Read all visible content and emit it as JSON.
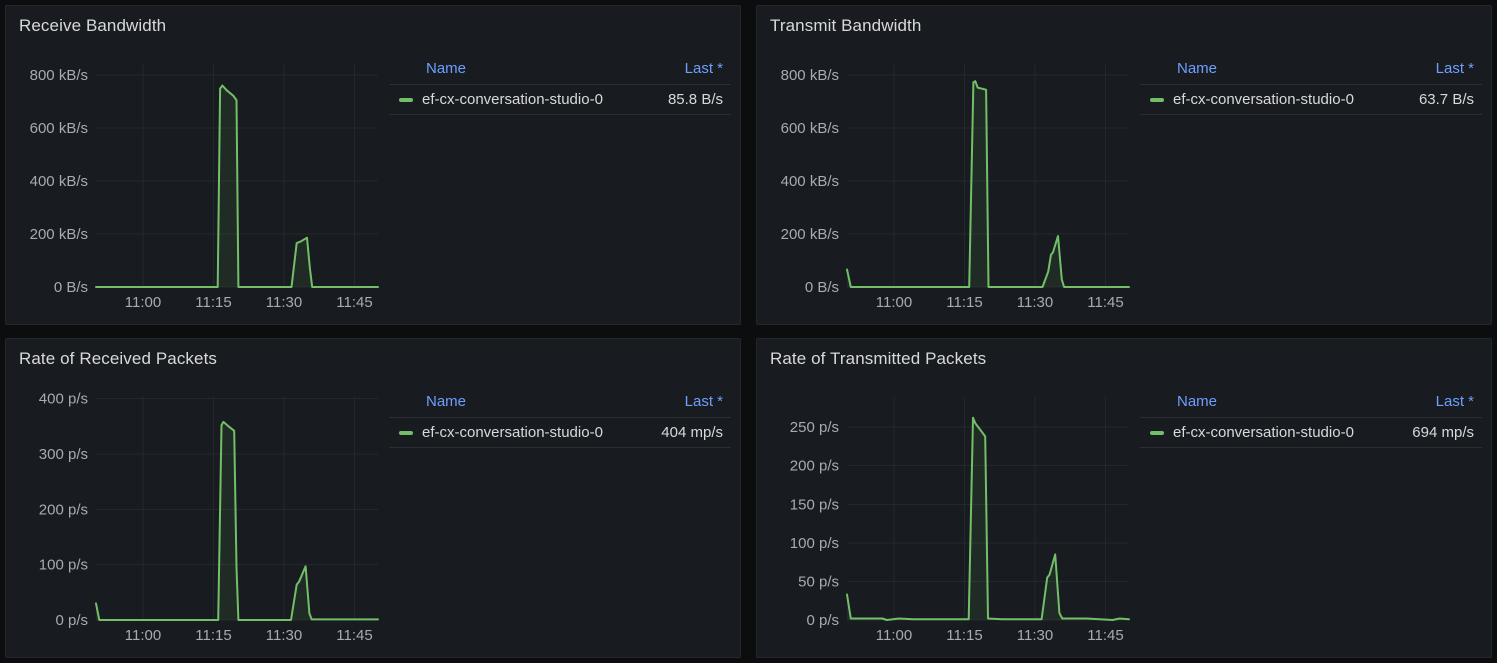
{
  "colors": {
    "page_bg": "#0c0d0f",
    "panel_bg": "#181b1f",
    "panel_border": "#25272d",
    "grid_line": "#24272c",
    "axis_text": "#a7abb2",
    "title_text": "#d8d9da",
    "legend_link_blue": "#6e9fff",
    "series_green": "#73bf69"
  },
  "legend_headers": {
    "name": "Name",
    "last": "Last *"
  },
  "panels": [
    {
      "slug": "receive-bandwidth",
      "title": "Receive Bandwidth",
      "series_name": "ef-cx-conversation-studio-0",
      "last_value": "85.8 B/s"
    },
    {
      "slug": "transmit-bandwidth",
      "title": "Transmit Bandwidth",
      "series_name": "ef-cx-conversation-studio-0",
      "last_value": "63.7 B/s"
    },
    {
      "slug": "rate-of-received-packets",
      "title": "Rate of Received Packets",
      "series_name": "ef-cx-conversation-studio-0",
      "last_value": "404 mp/s"
    },
    {
      "slug": "rate-of-transmitted-packets",
      "title": "Rate of Transmitted Packets",
      "series_name": "ef-cx-conversation-studio-0",
      "last_value": "694 mp/s"
    }
  ],
  "chart_data": [
    {
      "type": "area",
      "title": "Receive Bandwidth",
      "unit": "kB/s",
      "grid": true,
      "legend_position": "right-table",
      "x_range": [
        0,
        60
      ],
      "x_ticks": [
        {
          "min": 10,
          "label": "11:00"
        },
        {
          "min": 25,
          "label": "11:15"
        },
        {
          "min": 40,
          "label": "11:30"
        },
        {
          "min": 55,
          "label": "11:45"
        }
      ],
      "y_max": 841,
      "y_ticks": [
        {
          "value": 0,
          "label": "0 B/s"
        },
        {
          "value": 200,
          "label": "200 kB/s"
        },
        {
          "value": 400,
          "label": "400 kB/s"
        },
        {
          "value": 600,
          "label": "600 kB/s"
        },
        {
          "value": 800,
          "label": "800 kB/s"
        }
      ],
      "fill_opacity": 0.1,
      "series": [
        {
          "name": "ef-cx-conversation-studio-0",
          "color": "#73bf69",
          "last": "85.8 B/s",
          "points": [
            [
              0,
              0
            ],
            [
              25.9,
              0
            ],
            [
              26.4,
              748
            ],
            [
              26.9,
              760
            ],
            [
              27.8,
              742
            ],
            [
              29.2,
              722
            ],
            [
              29.9,
              705
            ],
            [
              30.3,
              0
            ],
            [
              41.6,
              0
            ],
            [
              42.7,
              166
            ],
            [
              43.6,
              172
            ],
            [
              44.9,
              186
            ],
            [
              45.5,
              70
            ],
            [
              46,
              0
            ],
            [
              60,
              0
            ]
          ]
        }
      ]
    },
    {
      "type": "area",
      "title": "Transmit Bandwidth",
      "unit": "kB/s",
      "grid": true,
      "legend_position": "right-table",
      "x_range": [
        0,
        60
      ],
      "x_ticks": [
        {
          "min": 10,
          "label": "11:00"
        },
        {
          "min": 25,
          "label": "11:15"
        },
        {
          "min": 40,
          "label": "11:30"
        },
        {
          "min": 55,
          "label": "11:45"
        }
      ],
      "y_max": 841,
      "y_ticks": [
        {
          "value": 0,
          "label": "0 B/s"
        },
        {
          "value": 200,
          "label": "200 kB/s"
        },
        {
          "value": 400,
          "label": "400 kB/s"
        },
        {
          "value": 600,
          "label": "600 kB/s"
        },
        {
          "value": 800,
          "label": "800 kB/s"
        }
      ],
      "fill_opacity": 0.1,
      "series": [
        {
          "name": "ef-cx-conversation-studio-0",
          "color": "#73bf69",
          "last": "63.7 B/s",
          "points": [
            [
              0,
              66
            ],
            [
              0.8,
              0
            ],
            [
              26,
              0
            ],
            [
              26.9,
              772
            ],
            [
              27.3,
              776
            ],
            [
              27.8,
              752
            ],
            [
              29.6,
              744
            ],
            [
              30.1,
              0
            ],
            [
              41.6,
              0
            ],
            [
              42.8,
              58
            ],
            [
              43.4,
              122
            ],
            [
              43.8,
              130
            ],
            [
              44.9,
              192
            ],
            [
              45.7,
              28
            ],
            [
              46.2,
              0
            ],
            [
              60,
              0
            ]
          ]
        }
      ]
    },
    {
      "type": "area",
      "title": "Rate of Received Packets",
      "unit": "p/s",
      "grid": true,
      "legend_position": "right-table",
      "x_range": [
        0,
        60
      ],
      "x_ticks": [
        {
          "min": 10,
          "label": "11:00"
        },
        {
          "min": 25,
          "label": "11:15"
        },
        {
          "min": 40,
          "label": "11:30"
        },
        {
          "min": 55,
          "label": "11:45"
        }
      ],
      "y_max": 403,
      "y_ticks": [
        {
          "value": 0,
          "label": "0 p/s"
        },
        {
          "value": 100,
          "label": "100 p/s"
        },
        {
          "value": 200,
          "label": "200 p/s"
        },
        {
          "value": 300,
          "label": "300 p/s"
        },
        {
          "value": 400,
          "label": "400 p/s"
        }
      ],
      "fill_opacity": 0.1,
      "series": [
        {
          "name": "ef-cx-conversation-studio-0",
          "color": "#73bf69",
          "last": "404 mp/s",
          "points": [
            [
              0,
              30
            ],
            [
              0.7,
              0
            ],
            [
              26,
              0
            ],
            [
              26.7,
              352
            ],
            [
              27.1,
              358
            ],
            [
              28.2,
              350
            ],
            [
              29.4,
              342
            ],
            [
              29.9,
              95
            ],
            [
              30.3,
              0
            ],
            [
              41.5,
              0
            ],
            [
              42.7,
              64
            ],
            [
              43.2,
              69
            ],
            [
              44.6,
              97
            ],
            [
              45.4,
              12
            ],
            [
              45.9,
              1
            ],
            [
              60,
              1
            ]
          ]
        }
      ]
    },
    {
      "type": "area",
      "title": "Rate of Transmitted Packets",
      "unit": "p/s",
      "grid": true,
      "legend_position": "right-table",
      "x_range": [
        0,
        60
      ],
      "x_ticks": [
        {
          "min": 10,
          "label": "11:00"
        },
        {
          "min": 25,
          "label": "11:15"
        },
        {
          "min": 40,
          "label": "11:30"
        },
        {
          "min": 55,
          "label": "11:45"
        }
      ],
      "y_max": 289,
      "y_ticks": [
        {
          "value": 0,
          "label": "0 p/s"
        },
        {
          "value": 50,
          "label": "50 p/s"
        },
        {
          "value": 100,
          "label": "100 p/s"
        },
        {
          "value": 150,
          "label": "150 p/s"
        },
        {
          "value": 200,
          "label": "200 p/s"
        },
        {
          "value": 250,
          "label": "250 p/s"
        }
      ],
      "fill_opacity": 0.1,
      "series": [
        {
          "name": "ef-cx-conversation-studio-0",
          "color": "#73bf69",
          "last": "694 mp/s",
          "points": [
            [
              0,
              33
            ],
            [
              0.8,
              2
            ],
            [
              7.5,
              2
            ],
            [
              8.5,
              0
            ],
            [
              11,
              2
            ],
            [
              14,
              1
            ],
            [
              25.9,
              1
            ],
            [
              26.8,
              262
            ],
            [
              27.3,
              255
            ],
            [
              29.4,
              238
            ],
            [
              30,
              2
            ],
            [
              33,
              1
            ],
            [
              41.4,
              1
            ],
            [
              42.6,
              55
            ],
            [
              43.1,
              59
            ],
            [
              44.3,
              85
            ],
            [
              45.2,
              9
            ],
            [
              45.8,
              2
            ],
            [
              51,
              2
            ],
            [
              56.5,
              0
            ],
            [
              58,
              2
            ],
            [
              60,
              1
            ]
          ]
        }
      ]
    }
  ]
}
